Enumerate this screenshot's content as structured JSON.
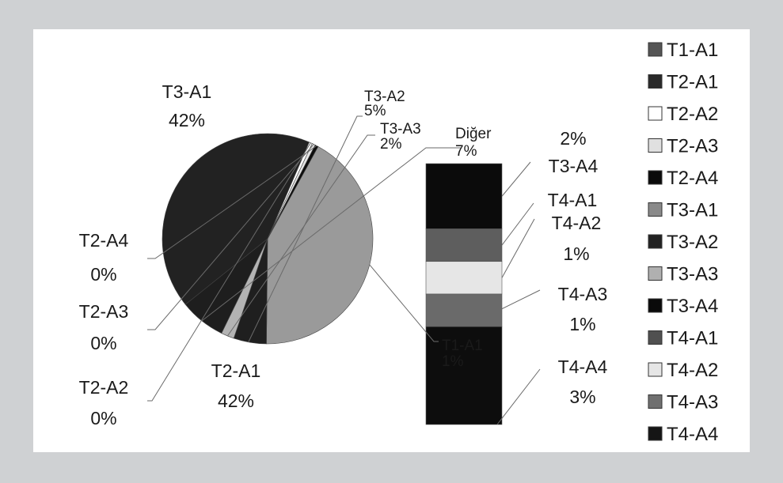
{
  "chart_data": {
    "type": "pie",
    "title": "",
    "slices": [
      {
        "label": "T3-A1",
        "value": 42,
        "value_label": "42%",
        "color": "#9a9a9a"
      },
      {
        "label": "T3-A2",
        "value": 5,
        "value_label": "5%",
        "color": "#1f1f1f"
      },
      {
        "label": "T3-A3",
        "value": 2,
        "value_label": "2%",
        "color": "#b3b3b3"
      },
      {
        "label": "Diğer",
        "value": 7,
        "value_label": "7%",
        "color": "#1e1e1e"
      },
      {
        "label": "T2-A1",
        "value": 42,
        "value_label": "42%",
        "color": "#222222"
      },
      {
        "label": "T2-A2",
        "value": 0,
        "value_label": "0%",
        "color": "#ffffff"
      },
      {
        "label": "T2-A3",
        "value": 0,
        "value_label": "0%",
        "color": "#e4e4e4"
      },
      {
        "label": "T2-A4",
        "value": 0,
        "value_label": "0%",
        "color": "#0d0d0d"
      }
    ],
    "breakdown": {
      "of": "Diğer",
      "segments": [
        {
          "label": "T3-A4",
          "value": 2,
          "value_label": "2%",
          "color": "#0b0b0b"
        },
        {
          "label": "T4-A1",
          "value": 1,
          "value_label": "",
          "color": "#5e5e5e"
        },
        {
          "label": "T4-A2",
          "value": 1,
          "value_label": "1%",
          "color": "#e6e6e6"
        },
        {
          "label": "T4-A3",
          "value": 1,
          "value_label": "1%",
          "color": "#6a6a6a"
        },
        {
          "label": "T4-A4",
          "value": 3,
          "value_label": "3%",
          "color": "#0d0d0d"
        }
      ]
    },
    "extra_labels": [
      {
        "label": "T1-A1",
        "value": 1,
        "value_label": "1%"
      }
    ],
    "legend": {
      "placement": "right",
      "entries": [
        {
          "label": "T1-A1",
          "color": "#555555"
        },
        {
          "label": "T2-A1",
          "color": "#2a2a2a"
        },
        {
          "label": "T2-A2",
          "color": "#ffffff"
        },
        {
          "label": "T2-A3",
          "color": "#e0e0e0"
        },
        {
          "label": "T2-A4",
          "color": "#0a0a0a"
        },
        {
          "label": "T3-A1",
          "color": "#8a8a8a"
        },
        {
          "label": "T3-A2",
          "color": "#222222"
        },
        {
          "label": "T3-A3",
          "color": "#b0b0b0"
        },
        {
          "label": "T3-A4",
          "color": "#0a0a0a"
        },
        {
          "label": "T4-A1",
          "color": "#505050"
        },
        {
          "label": "T4-A2",
          "color": "#e6e6e6"
        },
        {
          "label": "T4-A3",
          "color": "#707070"
        },
        {
          "label": "T4-A4",
          "color": "#151515"
        }
      ]
    }
  }
}
